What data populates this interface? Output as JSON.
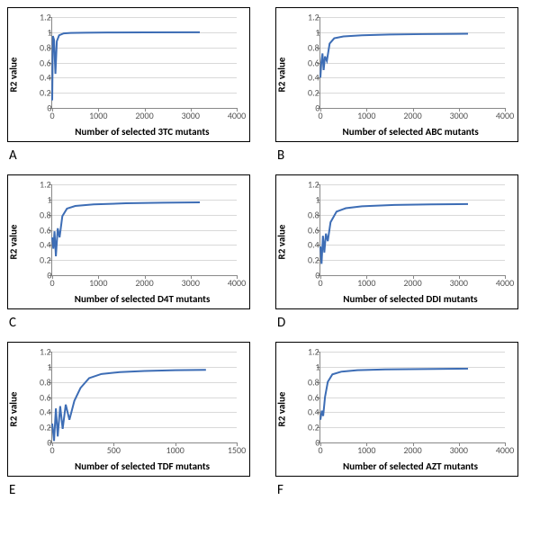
{
  "background_color": "#ffffff",
  "grid_color": "#d9d9d9",
  "axis_color": "#888888",
  "line_color": "#3d6db5",
  "line_width": 2,
  "label_fontsize": 11,
  "tick_fontsize": 10,
  "panel_label_fontsize": 15,
  "panels": [
    {
      "id": "A",
      "ylabel": "R2 value",
      "xlabel": "Number of selected 3TC mutants",
      "xlim": [
        0,
        4000
      ],
      "ylim": [
        0,
        1.2
      ],
      "xticks": [
        0,
        1000,
        2000,
        3000,
        4000
      ],
      "yticks": [
        0,
        0.2,
        0.4,
        0.6,
        0.8,
        1,
        1.2
      ],
      "series": [
        [
          0,
          0.1
        ],
        [
          15,
          0.95
        ],
        [
          40,
          0.9
        ],
        [
          70,
          0.45
        ],
        [
          100,
          0.88
        ],
        [
          150,
          0.96
        ],
        [
          250,
          0.985
        ],
        [
          400,
          0.99
        ],
        [
          700,
          0.993
        ],
        [
          1200,
          0.996
        ],
        [
          2000,
          0.998
        ],
        [
          3200,
          0.999
        ]
      ]
    },
    {
      "id": "B",
      "ylabel": "R2 value",
      "xlabel": "Number of selected ABC mutants",
      "xlim": [
        0,
        4000
      ],
      "ylim": [
        0,
        1.2
      ],
      "xticks": [
        0,
        1000,
        2000,
        3000,
        4000
      ],
      "yticks": [
        0,
        0.2,
        0.4,
        0.6,
        0.8,
        1,
        1.2
      ],
      "series": [
        [
          0,
          0.4
        ],
        [
          20,
          0.6
        ],
        [
          45,
          0.72
        ],
        [
          70,
          0.5
        ],
        [
          100,
          0.68
        ],
        [
          140,
          0.62
        ],
        [
          200,
          0.85
        ],
        [
          300,
          0.92
        ],
        [
          500,
          0.945
        ],
        [
          900,
          0.96
        ],
        [
          1500,
          0.97
        ],
        [
          2200,
          0.975
        ],
        [
          3200,
          0.98
        ]
      ]
    },
    {
      "id": "C",
      "ylabel": "R2 value",
      "xlabel": "Number of selected D4T mutants",
      "xlim": [
        0,
        4000
      ],
      "ylim": [
        0,
        1.2
      ],
      "xticks": [
        0,
        1000,
        2000,
        3000,
        4000
      ],
      "yticks": [
        0,
        0.2,
        0.4,
        0.6,
        0.8,
        1,
        1.2
      ],
      "series": [
        [
          0,
          0.5
        ],
        [
          25,
          0.35
        ],
        [
          50,
          0.58
        ],
        [
          80,
          0.25
        ],
        [
          120,
          0.62
        ],
        [
          160,
          0.5
        ],
        [
          220,
          0.78
        ],
        [
          320,
          0.88
        ],
        [
          500,
          0.915
        ],
        [
          900,
          0.935
        ],
        [
          1600,
          0.95
        ],
        [
          2400,
          0.958
        ],
        [
          3200,
          0.962
        ]
      ]
    },
    {
      "id": "D",
      "ylabel": "R2 value",
      "xlabel": "Number of selected DDI mutants",
      "xlim": [
        0,
        4000
      ],
      "ylim": [
        0,
        1.2
      ],
      "xticks": [
        0,
        1000,
        2000,
        3000,
        4000
      ],
      "yticks": [
        0,
        0.2,
        0.4,
        0.6,
        0.8,
        1,
        1.2
      ],
      "series": [
        [
          0,
          0.38
        ],
        [
          25,
          0.15
        ],
        [
          55,
          0.52
        ],
        [
          85,
          0.3
        ],
        [
          120,
          0.55
        ],
        [
          160,
          0.45
        ],
        [
          220,
          0.7
        ],
        [
          350,
          0.84
        ],
        [
          550,
          0.885
        ],
        [
          900,
          0.91
        ],
        [
          1600,
          0.928
        ],
        [
          2400,
          0.935
        ],
        [
          3200,
          0.94
        ]
      ]
    },
    {
      "id": "E",
      "ylabel": "R2 value",
      "xlabel": "Number of selected TDF mutants",
      "xlim": [
        0,
        1500
      ],
      "ylim": [
        0,
        1.2
      ],
      "xticks": [
        0,
        500,
        1000,
        1500
      ],
      "yticks": [
        0,
        0.2,
        0.4,
        0.6,
        0.8,
        1,
        1.2
      ],
      "series": [
        [
          0,
          0.25
        ],
        [
          15,
          0.02
        ],
        [
          30,
          0.45
        ],
        [
          45,
          0.08
        ],
        [
          65,
          0.48
        ],
        [
          85,
          0.18
        ],
        [
          110,
          0.5
        ],
        [
          140,
          0.3
        ],
        [
          180,
          0.55
        ],
        [
          230,
          0.72
        ],
        [
          300,
          0.85
        ],
        [
          400,
          0.905
        ],
        [
          550,
          0.93
        ],
        [
          750,
          0.945
        ],
        [
          1000,
          0.955
        ],
        [
          1250,
          0.96
        ]
      ]
    },
    {
      "id": "F",
      "ylabel": "R2 value",
      "xlabel": "Number of selected AZT mutants",
      "xlim": [
        0,
        4000
      ],
      "ylim": [
        0,
        1.2
      ],
      "xticks": [
        0,
        1000,
        2000,
        3000,
        4000
      ],
      "yticks": [
        0,
        0.2,
        0.4,
        0.6,
        0.8,
        1,
        1.2
      ],
      "series": [
        [
          0,
          0.3
        ],
        [
          30,
          0.42
        ],
        [
          60,
          0.35
        ],
        [
          100,
          0.6
        ],
        [
          160,
          0.8
        ],
        [
          260,
          0.9
        ],
        [
          450,
          0.935
        ],
        [
          800,
          0.955
        ],
        [
          1400,
          0.965
        ],
        [
          2200,
          0.97
        ],
        [
          3200,
          0.975
        ]
      ]
    }
  ]
}
